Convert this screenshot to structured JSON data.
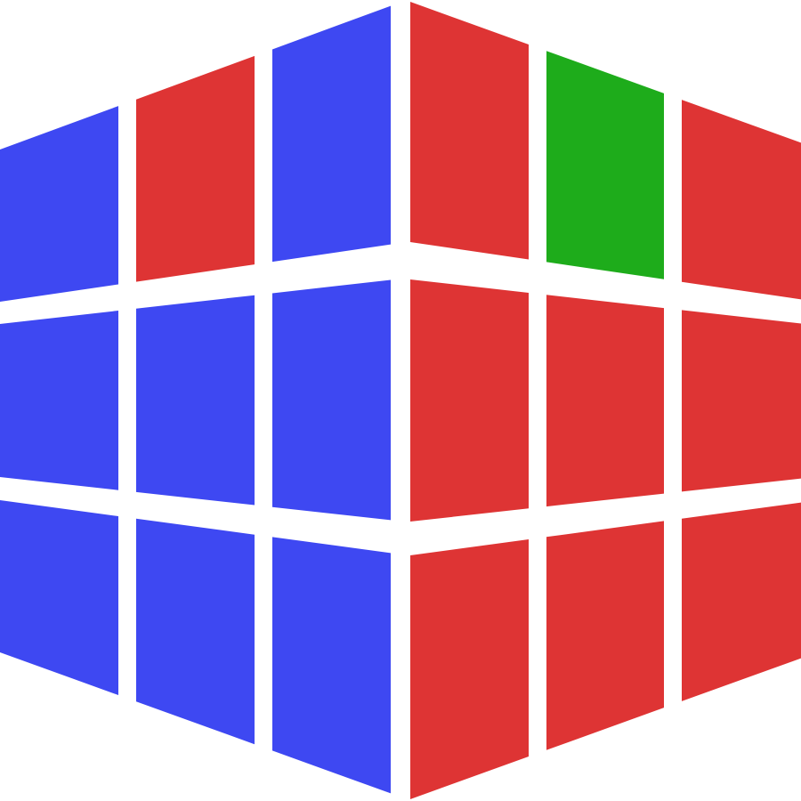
{
  "puzzle": {
    "type": "3x3 cube",
    "colors": {
      "blue": "#3e48f2",
      "red": "#de3434",
      "green": "#1eac1b"
    },
    "left_face": {
      "stickers": [
        [
          "blue",
          "red",
          "blue"
        ],
        [
          "blue",
          "blue",
          "blue"
        ],
        [
          "blue",
          "blue",
          "blue"
        ]
      ]
    },
    "right_face": {
      "stickers": [
        [
          "red",
          "green",
          "red"
        ],
        [
          "red",
          "red",
          "red"
        ],
        [
          "red",
          "red",
          "red"
        ]
      ]
    }
  }
}
